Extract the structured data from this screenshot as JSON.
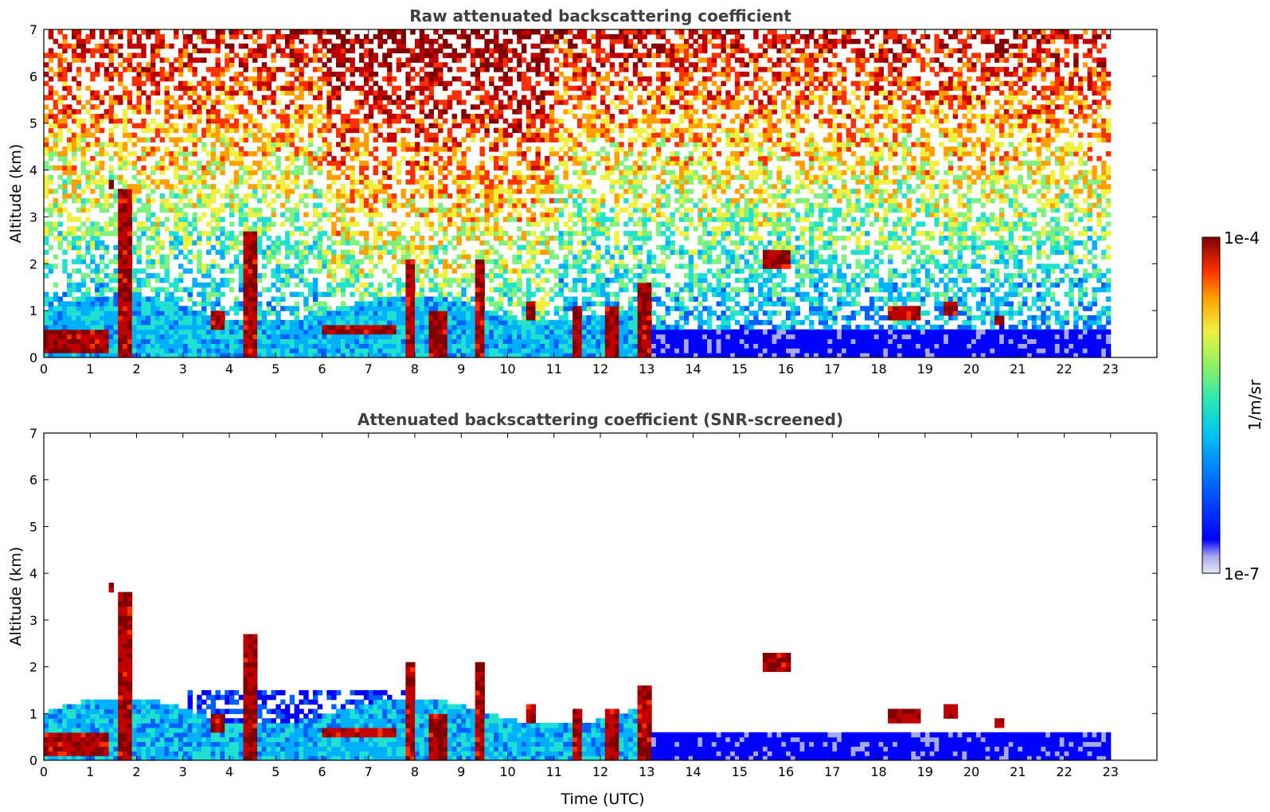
{
  "chart_data": [
    {
      "type": "heatmap",
      "title": "Raw attenuated backscattering coefficient",
      "xlabel": "",
      "ylabel": "Altitude (km)",
      "xlim": [
        0,
        24
      ],
      "ylim": [
        0,
        7
      ],
      "xticks": [
        0,
        1,
        2,
        3,
        4,
        5,
        6,
        7,
        8,
        9,
        10,
        11,
        12,
        13,
        14,
        15,
        16,
        17,
        18,
        19,
        20,
        21,
        22,
        23
      ],
      "yticks": [
        0,
        1,
        2,
        3,
        4,
        5,
        6,
        7
      ],
      "data_end_time": 23,
      "description_cells": "noisy backscatter curtain; boundary layer below ~1 km, cloud layers near 2-2.5 km, noisy upper troposphere",
      "clouds": [
        {
          "t0": 0.0,
          "t1": 1.4,
          "z0": 0.1,
          "z1": 0.6
        },
        {
          "t0": 1.6,
          "t1": 1.9,
          "z0": 0.0,
          "z1": 3.5
        },
        {
          "t0": 1.35,
          "t1": 1.45,
          "z0": 3.6,
          "z1": 3.8
        },
        {
          "t0": 3.6,
          "t1": 3.9,
          "z0": 0.6,
          "z1": 0.9
        },
        {
          "t0": 4.25,
          "t1": 4.5,
          "z0": 0.0,
          "z1": 2.6
        },
        {
          "t0": 6.0,
          "t1": 7.6,
          "z0": 0.45,
          "z1": 0.7
        },
        {
          "t0": 7.75,
          "t1": 7.9,
          "z0": 0.0,
          "z1": 2.0
        },
        {
          "t0": 8.3,
          "t1": 8.6,
          "z0": 0.0,
          "z1": 0.9
        },
        {
          "t0": 9.3,
          "t1": 9.45,
          "z0": 0.0,
          "z1": 2.0
        },
        {
          "t0": 10.4,
          "t1": 10.6,
          "z0": 0.8,
          "z1": 1.1
        },
        {
          "t0": 11.4,
          "t1": 11.55,
          "z0": 0.0,
          "z1": 1.0
        },
        {
          "t0": 12.1,
          "t1": 12.3,
          "z0": 0.0,
          "z1": 1.0
        },
        {
          "t0": 12.8,
          "t1": 13.0,
          "z0": 0.0,
          "z1": 1.5
        },
        {
          "t0": 15.5,
          "t1": 16.0,
          "z0": 1.9,
          "z1": 2.3
        },
        {
          "t0": 18.2,
          "t1": 18.8,
          "z0": 0.75,
          "z1": 1.05
        },
        {
          "t0": 19.35,
          "t1": 19.6,
          "z0": 0.9,
          "z1": 1.1
        },
        {
          "t0": 20.5,
          "t1": 20.7,
          "z0": 0.7,
          "z1": 0.85
        }
      ]
    },
    {
      "type": "heatmap",
      "title": "Attenuated backscattering coefficient (SNR-screened)",
      "xlabel": "Time (UTC)",
      "ylabel": "Altitude (km)",
      "xlim": [
        0,
        24
      ],
      "ylim": [
        0,
        7
      ],
      "xticks": [
        0,
        1,
        2,
        3,
        4,
        5,
        6,
        7,
        8,
        9,
        10,
        11,
        12,
        13,
        14,
        15,
        16,
        17,
        18,
        19,
        20,
        21,
        22,
        23
      ],
      "yticks": [
        0,
        1,
        2,
        3,
        4,
        5,
        6,
        7
      ],
      "data_end_time": 23
    }
  ],
  "colorbar": {
    "label": "1/m/sr",
    "max_label": "1e-4",
    "min_label": "1e-7",
    "colors": [
      "#e8e8f8",
      "#a8a8ec",
      "#0000ff",
      "#0060ff",
      "#00b0ff",
      "#20e0d0",
      "#80f080",
      "#f0f040",
      "#ffa000",
      "#ff3000",
      "#c00000",
      "#800000"
    ]
  },
  "colors": {
    "title": "#404040",
    "axis": "#000000"
  }
}
